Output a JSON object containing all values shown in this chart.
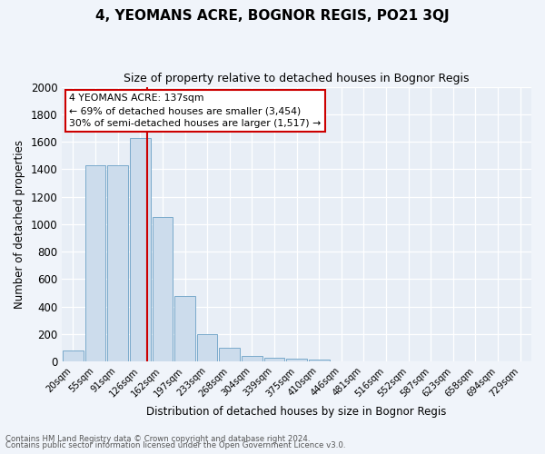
{
  "title": "4, YEOMANS ACRE, BOGNOR REGIS, PO21 3QJ",
  "subtitle": "Size of property relative to detached houses in Bognor Regis",
  "xlabel": "Distribution of detached houses by size in Bognor Regis",
  "ylabel": "Number of detached properties",
  "footnote1": "Contains HM Land Registry data © Crown copyright and database right 2024.",
  "footnote2": "Contains public sector information licensed under the Open Government Licence v3.0.",
  "bar_labels": [
    "20sqm",
    "55sqm",
    "91sqm",
    "126sqm",
    "162sqm",
    "197sqm",
    "233sqm",
    "268sqm",
    "304sqm",
    "339sqm",
    "375sqm",
    "410sqm",
    "446sqm",
    "481sqm",
    "516sqm",
    "552sqm",
    "587sqm",
    "623sqm",
    "658sqm",
    "694sqm",
    "729sqm"
  ],
  "bar_values": [
    80,
    1430,
    1430,
    1630,
    1050,
    480,
    200,
    100,
    42,
    30,
    20,
    15,
    0,
    0,
    0,
    0,
    0,
    0,
    0,
    0,
    0
  ],
  "bar_color": "#ccdcec",
  "bar_edge_color": "#7aaacb",
  "ylim": [
    0,
    2000
  ],
  "yticks": [
    0,
    200,
    400,
    600,
    800,
    1000,
    1200,
    1400,
    1600,
    1800,
    2000
  ],
  "vline_color": "#cc0000",
  "annotation_title": "4 YEOMANS ACRE: 137sqm",
  "annotation_line1": "← 69% of detached houses are smaller (3,454)",
  "annotation_line2": "30% of semi-detached houses are larger (1,517) →",
  "bg_color": "#e8eef6",
  "plot_bg_color": "#e8eef6",
  "fig_bg_color": "#f0f4fa"
}
